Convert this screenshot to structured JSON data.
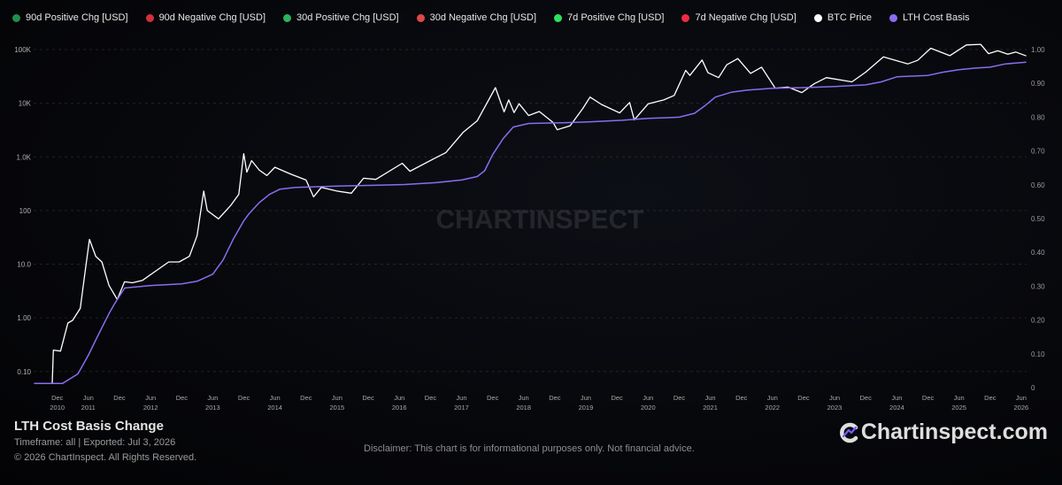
{
  "legend": [
    {
      "label": "90d Positive Chg [USD]",
      "color": "#1f8f4e"
    },
    {
      "label": "90d Negative Chg [USD]",
      "color": "#d0313a"
    },
    {
      "label": "30d Positive Chg [USD]",
      "color": "#2db25c"
    },
    {
      "label": "30d Negative Chg [USD]",
      "color": "#e04848"
    },
    {
      "label": "7d Positive Chg [USD]",
      "color": "#2fe25e"
    },
    {
      "label": "7d Negative Chg [USD]",
      "color": "#ee2b43"
    },
    {
      "label": "BTC Price",
      "color": "#ffffff"
    },
    {
      "label": "LTH Cost Basis",
      "color": "#8b6cf0"
    }
  ],
  "footer": {
    "title": "LTH Cost Basis Change",
    "meta": "Timeframe: all | Exported: Jul 3, 2026",
    "copyright": "© 2026 ChartInspect. All Rights Reserved.",
    "disclaimer": "Disclaimer: This chart is for informational purposes only. Not financial advice.",
    "brand": "Chartinspect.com"
  },
  "watermark": "CHARTINSPECT",
  "chart_data": {
    "type": "line",
    "x_range": [
      "2010-07-15",
      "2026-07-03"
    ],
    "y_left": {
      "scale": "log",
      "range": [
        0.05,
        100000
      ],
      "ticks": [
        0.1,
        1,
        10,
        100,
        1000,
        10000,
        100000
      ],
      "tick_labels": [
        "0.10",
        "1.00",
        "10.0",
        "100",
        "1.0K",
        "10K",
        "100K"
      ]
    },
    "y_right": {
      "scale": "linear",
      "range": [
        0,
        1
      ],
      "ticks": [
        0,
        0.1,
        0.2,
        0.3,
        0.4,
        0.5,
        0.6,
        0.7,
        0.8,
        0.9,
        1
      ],
      "tick_labels": [
        "0",
        "0.10",
        "0.20",
        "0.30",
        "0.40",
        "0.50",
        "0.60",
        "0.70",
        "0.80",
        "0.90",
        "1.00"
      ]
    },
    "x_ticks": [
      {
        "date": "2010-12-01",
        "label": "Dec",
        "year": "2010"
      },
      {
        "date": "2011-06-01",
        "label": "Jun",
        "year": "2011"
      },
      {
        "date": "2011-12-01",
        "label": "Dec",
        "year": ""
      },
      {
        "date": "2012-06-01",
        "label": "Jun",
        "year": "2012"
      },
      {
        "date": "2012-12-01",
        "label": "Dec",
        "year": ""
      },
      {
        "date": "2013-06-01",
        "label": "Jun",
        "year": "2013"
      },
      {
        "date": "2013-12-01",
        "label": "Dec",
        "year": ""
      },
      {
        "date": "2014-06-01",
        "label": "Jun",
        "year": "2014"
      },
      {
        "date": "2014-12-01",
        "label": "Dec",
        "year": ""
      },
      {
        "date": "2015-06-01",
        "label": "Jun",
        "year": "2015"
      },
      {
        "date": "2015-12-01",
        "label": "Dec",
        "year": ""
      },
      {
        "date": "2016-06-01",
        "label": "Jun",
        "year": "2016"
      },
      {
        "date": "2016-12-01",
        "label": "Dec",
        "year": ""
      },
      {
        "date": "2017-06-01",
        "label": "Jun",
        "year": "2017"
      },
      {
        "date": "2017-12-01",
        "label": "Dec",
        "year": ""
      },
      {
        "date": "2018-06-01",
        "label": "Jun",
        "year": "2018"
      },
      {
        "date": "2018-12-01",
        "label": "Dec",
        "year": ""
      },
      {
        "date": "2019-06-01",
        "label": "Jun",
        "year": "2019"
      },
      {
        "date": "2019-12-01",
        "label": "Dec",
        "year": ""
      },
      {
        "date": "2020-06-01",
        "label": "Jun",
        "year": "2020"
      },
      {
        "date": "2020-12-01",
        "label": "Dec",
        "year": ""
      },
      {
        "date": "2021-06-01",
        "label": "Jun",
        "year": "2021"
      },
      {
        "date": "2021-12-01",
        "label": "Dec",
        "year": ""
      },
      {
        "date": "2022-06-01",
        "label": "Jun",
        "year": "2022"
      },
      {
        "date": "2022-12-01",
        "label": "Dec",
        "year": ""
      },
      {
        "date": "2023-06-01",
        "label": "Jun",
        "year": "2023"
      },
      {
        "date": "2023-12-01",
        "label": "Dec",
        "year": ""
      },
      {
        "date": "2024-06-01",
        "label": "Jun",
        "year": "2024"
      },
      {
        "date": "2024-12-01",
        "label": "Dec",
        "year": ""
      },
      {
        "date": "2025-06-01",
        "label": "Jun",
        "year": "2025"
      },
      {
        "date": "2025-12-01",
        "label": "Dec",
        "year": ""
      },
      {
        "date": "2026-06-01",
        "label": "Jun",
        "year": "2026"
      }
    ],
    "series": [
      {
        "name": "BTC Price",
        "color": "#ffffff",
        "points": [
          [
            "2010-07-18",
            0.06
          ],
          [
            "2010-09-01",
            0.06
          ],
          [
            "2010-11-01",
            0.06
          ],
          [
            "2010-11-08",
            0.25
          ],
          [
            "2010-12-20",
            0.24
          ],
          [
            "2011-02-01",
            0.8
          ],
          [
            "2011-03-01",
            0.9
          ],
          [
            "2011-04-15",
            1.5
          ],
          [
            "2011-05-15",
            8
          ],
          [
            "2011-06-08",
            29
          ],
          [
            "2011-07-15",
            14
          ],
          [
            "2011-08-20",
            11
          ],
          [
            "2011-10-01",
            4
          ],
          [
            "2011-11-18",
            2.2
          ],
          [
            "2011-12-31",
            4.7
          ],
          [
            "2012-02-15",
            4.5
          ],
          [
            "2012-04-15",
            5
          ],
          [
            "2012-07-15",
            8
          ],
          [
            "2012-09-15",
            11
          ],
          [
            "2012-11-15",
            11
          ],
          [
            "2013-01-15",
            14
          ],
          [
            "2013-03-01",
            34
          ],
          [
            "2013-04-09",
            230
          ],
          [
            "2013-04-30",
            100
          ],
          [
            "2013-07-05",
            70
          ],
          [
            "2013-09-15",
            125
          ],
          [
            "2013-11-01",
            200
          ],
          [
            "2013-11-30",
            1150
          ],
          [
            "2013-12-18",
            520
          ],
          [
            "2014-01-15",
            850
          ],
          [
            "2014-03-01",
            570
          ],
          [
            "2014-04-15",
            450
          ],
          [
            "2014-06-01",
            640
          ],
          [
            "2014-09-01",
            480
          ],
          [
            "2014-12-01",
            370
          ],
          [
            "2015-01-14",
            180
          ],
          [
            "2015-03-01",
            270
          ],
          [
            "2015-06-01",
            230
          ],
          [
            "2015-08-24",
            210
          ],
          [
            "2015-11-04",
            400
          ],
          [
            "2016-01-15",
            380
          ],
          [
            "2016-06-18",
            760
          ],
          [
            "2016-08-02",
            540
          ],
          [
            "2016-12-31",
            960
          ],
          [
            "2017-03-01",
            1200
          ],
          [
            "2017-06-12",
            2900
          ],
          [
            "2017-09-01",
            4700
          ],
          [
            "2017-12-17",
            19500
          ],
          [
            "2018-02-06",
            6900
          ],
          [
            "2018-03-05",
            11500
          ],
          [
            "2018-04-06",
            6700
          ],
          [
            "2018-05-05",
            9800
          ],
          [
            "2018-06-30",
            5900
          ],
          [
            "2018-09-01",
            7000
          ],
          [
            "2018-11-20",
            4400
          ],
          [
            "2018-12-15",
            3200
          ],
          [
            "2019-03-01",
            3800
          ],
          [
            "2019-05-15",
            8000
          ],
          [
            "2019-06-26",
            13000
          ],
          [
            "2019-09-01",
            9500
          ],
          [
            "2019-12-17",
            6600
          ],
          [
            "2020-02-13",
            10300
          ],
          [
            "2020-03-12",
            4900
          ],
          [
            "2020-06-01",
            9700
          ],
          [
            "2020-09-01",
            11500
          ],
          [
            "2020-11-01",
            14000
          ],
          [
            "2021-01-08",
            41000
          ],
          [
            "2021-02-01",
            33000
          ],
          [
            "2021-04-14",
            64000
          ],
          [
            "2021-05-19",
            37000
          ],
          [
            "2021-07-20",
            30000
          ],
          [
            "2021-09-06",
            52000
          ],
          [
            "2021-11-10",
            68000
          ],
          [
            "2022-01-24",
            36000
          ],
          [
            "2022-03-29",
            47000
          ],
          [
            "2022-06-18",
            19000
          ],
          [
            "2022-09-01",
            20000
          ],
          [
            "2022-11-21",
            15800
          ],
          [
            "2023-02-01",
            23000
          ],
          [
            "2023-04-14",
            30000
          ],
          [
            "2023-09-11",
            25000
          ],
          [
            "2023-12-01",
            38000
          ],
          [
            "2024-03-14",
            73000
          ],
          [
            "2024-08-05",
            54000
          ],
          [
            "2024-10-01",
            63000
          ],
          [
            "2024-12-17",
            106000
          ],
          [
            "2025-04-08",
            77000
          ],
          [
            "2025-07-14",
            122000
          ],
          [
            "2025-10-06",
            125000
          ],
          [
            "2025-11-21",
            84000
          ],
          [
            "2026-01-15",
            95000
          ],
          [
            "2026-03-15",
            82000
          ],
          [
            "2026-05-01",
            90000
          ],
          [
            "2026-07-01",
            76000
          ]
        ]
      },
      {
        "name": "LTH Cost Basis",
        "color": "#8b6cf0",
        "points": [
          [
            "2010-07-18",
            0.06
          ],
          [
            "2011-01-01",
            0.06
          ],
          [
            "2011-04-01",
            0.09
          ],
          [
            "2011-06-01",
            0.2
          ],
          [
            "2011-08-01",
            0.5
          ],
          [
            "2011-10-01",
            1.2
          ],
          [
            "2011-11-01",
            1.8
          ],
          [
            "2012-01-01",
            3.6
          ],
          [
            "2012-06-01",
            4.0
          ],
          [
            "2012-12-01",
            4.3
          ],
          [
            "2013-03-01",
            4.8
          ],
          [
            "2013-06-01",
            6.5
          ],
          [
            "2013-08-01",
            12
          ],
          [
            "2013-10-01",
            30
          ],
          [
            "2013-12-01",
            65
          ],
          [
            "2014-01-01",
            88
          ],
          [
            "2014-03-01",
            140
          ],
          [
            "2014-05-01",
            200
          ],
          [
            "2014-07-01",
            250
          ],
          [
            "2014-10-01",
            270
          ],
          [
            "2015-06-01",
            285
          ],
          [
            "2016-01-01",
            295
          ],
          [
            "2016-07-01",
            305
          ],
          [
            "2017-01-01",
            330
          ],
          [
            "2017-06-01",
            370
          ],
          [
            "2017-09-01",
            430
          ],
          [
            "2017-10-15",
            550
          ],
          [
            "2017-12-01",
            1100
          ],
          [
            "2018-02-01",
            2200
          ],
          [
            "2018-04-01",
            3600
          ],
          [
            "2018-07-01",
            4200
          ],
          [
            "2019-01-01",
            4300
          ],
          [
            "2019-07-01",
            4500
          ],
          [
            "2020-01-01",
            4800
          ],
          [
            "2020-06-01",
            5200
          ],
          [
            "2020-12-01",
            5500
          ],
          [
            "2021-03-01",
            6500
          ],
          [
            "2021-05-01",
            9000
          ],
          [
            "2021-07-01",
            13000
          ],
          [
            "2021-10-01",
            16000
          ],
          [
            "2022-01-01",
            17500
          ],
          [
            "2022-06-01",
            19000
          ],
          [
            "2022-12-01",
            19500
          ],
          [
            "2023-06-01",
            20500
          ],
          [
            "2023-12-01",
            22000
          ],
          [
            "2024-03-01",
            25000
          ],
          [
            "2024-06-01",
            31000
          ],
          [
            "2024-12-01",
            33000
          ],
          [
            "2025-03-01",
            38000
          ],
          [
            "2025-06-01",
            42000
          ],
          [
            "2025-09-01",
            45000
          ],
          [
            "2025-12-01",
            47000
          ],
          [
            "2026-03-01",
            54000
          ],
          [
            "2026-07-01",
            58000
          ]
        ]
      }
    ],
    "legend_position": "top-left",
    "grid": "horizontal dashed"
  }
}
